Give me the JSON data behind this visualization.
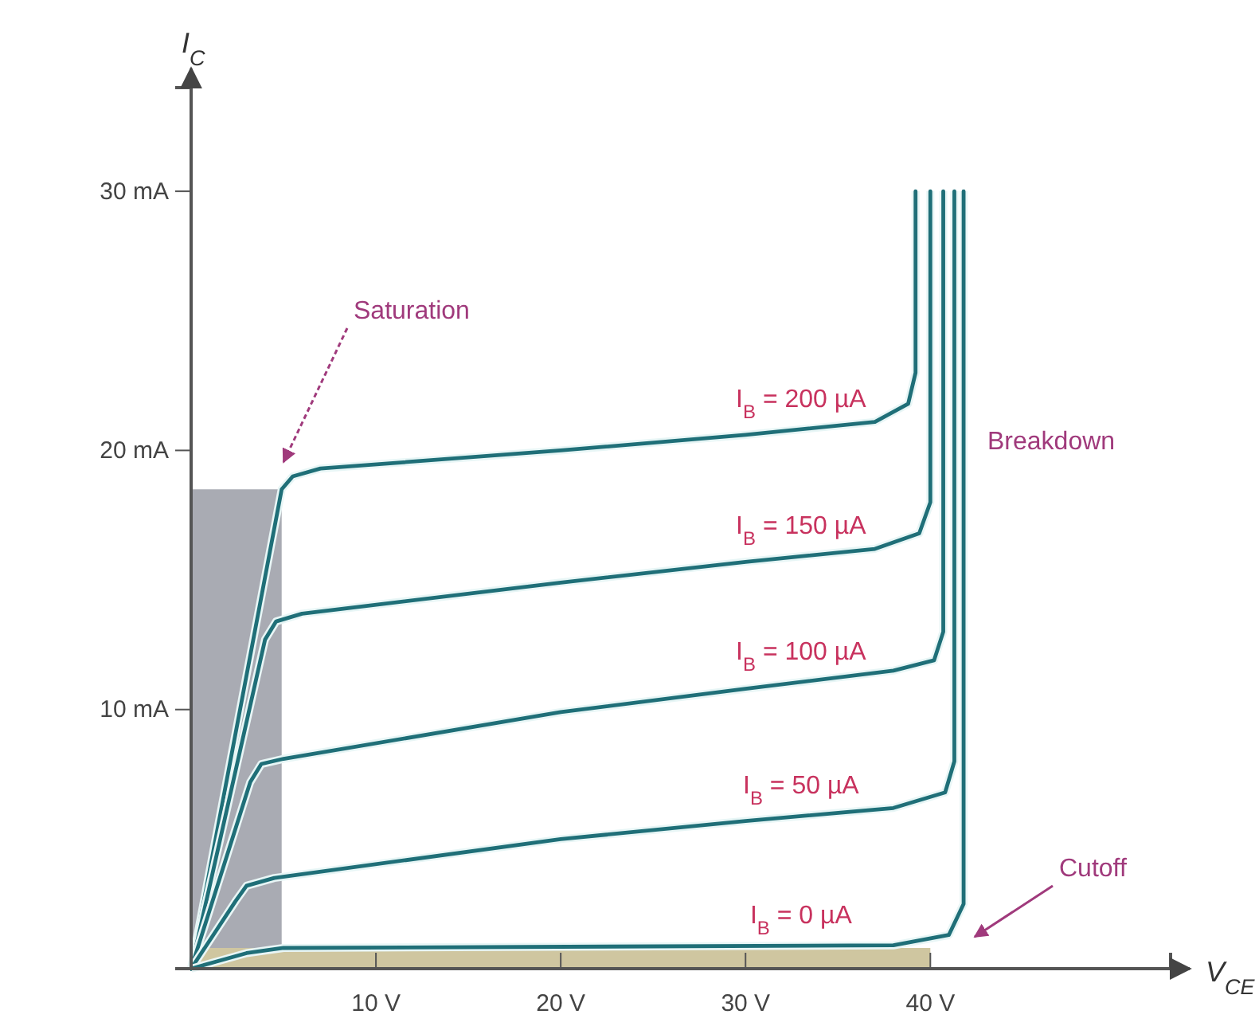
{
  "chart_data": {
    "type": "line",
    "xlabel": "V$_{CE}$",
    "ylabel": "I$_{C}$",
    "xlim": [
      0,
      53
    ],
    "ylim": [
      0,
      34
    ],
    "xticks": [
      {
        "value": 10,
        "label": "10 V"
      },
      {
        "value": 20,
        "label": "20 V"
      },
      {
        "value": 30,
        "label": "30 V"
      },
      {
        "value": 40,
        "label": "40 V"
      }
    ],
    "yticks": [
      {
        "value": 10,
        "label": "10 mA"
      },
      {
        "value": 20,
        "label": "20 mA"
      },
      {
        "value": 30,
        "label": "30 mA"
      }
    ],
    "grid": false,
    "marker": "none",
    "line_style": "solid",
    "series": [
      {
        "type": "area",
        "color": "#a9abb3",
        "x": [
          0,
          4.9
        ],
        "values": [
          18.5,
          18.5
        ]
      },
      {
        "type": "area",
        "color": "#cfc6a0",
        "x": [
          0,
          40
        ],
        "values": [
          0.8,
          0.8
        ]
      },
      {
        "name": "I$_{B}$ = 200 µA",
        "color": "#1f6f78",
        "x": [
          0,
          4.9,
          5.5,
          7,
          20,
          30,
          37,
          38.8,
          39.2,
          39.2
        ],
        "values": [
          0,
          18.5,
          19,
          19.3,
          20,
          20.6,
          21.1,
          21.8,
          23,
          30
        ]
      },
      {
        "name": "I$_{B}$ = 150 µA",
        "color": "#1f6f78",
        "x": [
          0,
          4,
          4.6,
          6,
          20,
          30,
          37,
          39.4,
          40,
          40
        ],
        "values": [
          0,
          12.7,
          13.4,
          13.7,
          14.9,
          15.7,
          16.2,
          16.8,
          18,
          30
        ]
      },
      {
        "name": "I$_{B}$ = 100 µA",
        "color": "#1f6f78",
        "x": [
          0,
          3.2,
          3.8,
          5,
          20,
          30,
          38,
          40.2,
          40.7,
          40.7
        ],
        "values": [
          0,
          7.2,
          7.9,
          8.1,
          9.9,
          10.8,
          11.5,
          11.9,
          13,
          30
        ]
      },
      {
        "name": "I$_{B}$ = 50 µA",
        "color": "#1f6f78",
        "x": [
          0,
          2.4,
          3,
          4.5,
          20,
          30,
          38,
          40.8,
          41.3,
          41.3
        ],
        "values": [
          0,
          2.6,
          3.2,
          3.5,
          5,
          5.7,
          6.2,
          6.8,
          8,
          30
        ]
      },
      {
        "name": "I$_{B}$ = 0 µA",
        "color": "#1f6f78",
        "x": [
          0,
          3,
          5,
          38,
          41,
          41.8,
          41.8
        ],
        "values": [
          0,
          0.6,
          0.8,
          0.9,
          1.3,
          2.5,
          30
        ]
      }
    ],
    "annotations": [
      "Saturation",
      "Breakdown",
      "Cutoff"
    ]
  }
}
